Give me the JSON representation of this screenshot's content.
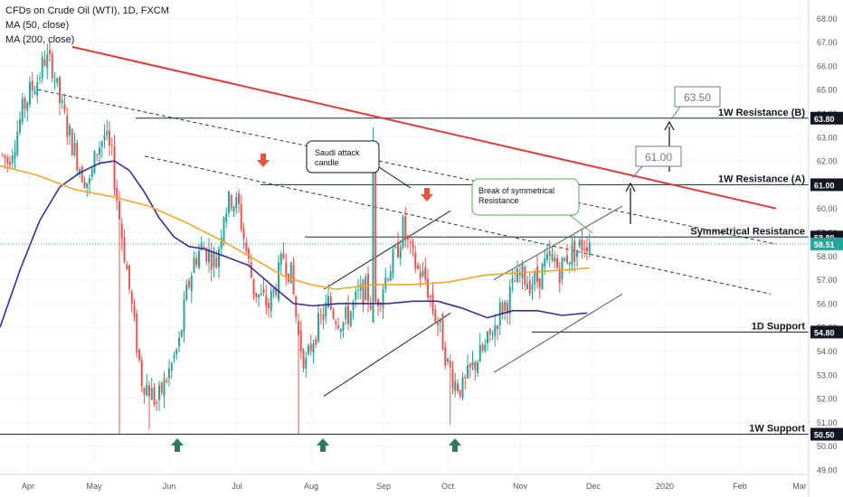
{
  "header": {
    "symbol": "CFDs on Crude Oil (WTI), 1D, FXCM",
    "ma50": "MA (50, close)",
    "ma200": "MA (200, close)"
  },
  "colors": {
    "up": "#26a69a",
    "down": "#ef5350",
    "ma50": "#3c2a98",
    "ma200": "#f5a623",
    "trend_red": "#e53935",
    "price_tag": "#26a69a",
    "arrow_up": "#2e7d52",
    "arrow_down": "#e8553e"
  },
  "chart_data": {
    "type": "candlestick",
    "x_labels": [
      "Apr",
      "May",
      "Jun",
      "Jul",
      "Aug",
      "Sep",
      "Oct",
      "Nov",
      "Dec",
      "2020",
      "Feb",
      "Mar"
    ],
    "y_ticks": [
      "49.00",
      "50.00",
      "51.00",
      "52.00",
      "53.00",
      "54.00",
      "55.00",
      "56.00",
      "57.00",
      "58.00",
      "59.00",
      "60.00",
      "61.00",
      "62.00",
      "63.00",
      "64.00",
      "65.00",
      "66.00",
      "67.00",
      "68.00"
    ],
    "ylim": [
      49,
      68.5
    ],
    "last_price": "58.51",
    "price_tags": [
      "63.80",
      "61.00",
      "58.80",
      "54.80",
      "50.50"
    ],
    "levels": [
      {
        "name": "1W Resistance (B)",
        "value": 63.8
      },
      {
        "name": "1W Resistance (A)",
        "value": 61.0
      },
      {
        "name": "Symmetrical Resistance",
        "value": 58.8
      },
      {
        "name": "1D Support",
        "value": 54.8
      },
      {
        "name": "1W Support",
        "value": 50.5
      }
    ],
    "annotations": {
      "saudi": "Saudi attack candle",
      "break": "Break of symmetrical Resistance",
      "target_a": "61.00",
      "target_b": "63.50"
    },
    "close_path": [
      [
        0,
        62.3
      ],
      [
        3,
        62.0
      ],
      [
        6,
        62.9
      ],
      [
        9,
        64.1
      ],
      [
        12,
        64.9
      ],
      [
        15,
        65.4
      ],
      [
        18,
        66.3
      ],
      [
        21,
        66.0
      ],
      [
        24,
        64.5
      ],
      [
        27,
        63.4
      ],
      [
        30,
        62.4
      ],
      [
        33,
        61.5
      ],
      [
        36,
        61.0
      ],
      [
        39,
        62.5
      ],
      [
        42,
        63.1
      ],
      [
        45,
        62.1
      ],
      [
        48,
        59.6
      ],
      [
        51,
        57.4
      ],
      [
        54,
        55.0
      ],
      [
        57,
        52.8
      ],
      [
        60,
        52.4
      ],
      [
        63,
        51.8
      ],
      [
        66,
        52.6
      ],
      [
        69,
        53.4
      ],
      [
        72,
        54.3
      ],
      [
        75,
        56.4
      ],
      [
        78,
        57.8
      ],
      [
        81,
        58.4
      ],
      [
        84,
        58.1
      ],
      [
        87,
        57.7
      ],
      [
        90,
        59.9
      ],
      [
        93,
        60.4
      ],
      [
        96,
        60.0
      ],
      [
        99,
        58.2
      ],
      [
        102,
        56.6
      ],
      [
        105,
        56.2
      ],
      [
        108,
        55.9
      ],
      [
        111,
        56.8
      ],
      [
        114,
        58.0
      ],
      [
        117,
        57.2
      ],
      [
        120,
        54.6
      ],
      [
        123,
        53.4
      ],
      [
        126,
        54.6
      ],
      [
        129,
        55.3
      ],
      [
        132,
        56.0
      ],
      [
        135,
        55.5
      ],
      [
        138,
        55.2
      ],
      [
        141,
        55.7
      ],
      [
        144,
        56.3
      ],
      [
        147,
        56.6
      ],
      [
        150,
        55.8
      ],
      [
        153,
        56.5
      ],
      [
        156,
        57.4
      ],
      [
        159,
        58.0
      ],
      [
        162,
        59.2
      ],
      [
        165,
        58.1
      ],
      [
        168,
        57.4
      ],
      [
        171,
        57.0
      ],
      [
        174,
        55.8
      ],
      [
        177,
        54.9
      ],
      [
        180,
        53.4
      ],
      [
        183,
        52.7
      ],
      [
        186,
        52.4
      ],
      [
        189,
        53.1
      ],
      [
        192,
        53.7
      ],
      [
        195,
        54.1
      ],
      [
        198,
        54.8
      ],
      [
        201,
        55.7
      ],
      [
        204,
        56.1
      ],
      [
        207,
        56.9
      ],
      [
        210,
        57.2
      ],
      [
        213,
        56.9
      ],
      [
        216,
        57.0
      ],
      [
        219,
        57.6
      ],
      [
        222,
        57.8
      ],
      [
        225,
        57.4
      ],
      [
        228,
        58.0
      ],
      [
        231,
        58.2
      ],
      [
        234,
        58.5
      ],
      [
        237,
        58.7
      ]
    ],
    "spikes": [
      {
        "i": 48,
        "lo": 50.5
      },
      {
        "i": 60,
        "lo": 50.7
      },
      {
        "i": 120,
        "lo": 50.5
      },
      {
        "i": 150,
        "hi": 63.4,
        "o": 55.2,
        "c": 62.1
      },
      {
        "i": 181,
        "lo": 50.9
      }
    ],
    "ma50_path": [
      [
        0,
        55.0
      ],
      [
        8,
        57.4
      ],
      [
        16,
        59.5
      ],
      [
        24,
        60.9
      ],
      [
        32,
        61.5
      ],
      [
        40,
        61.9
      ],
      [
        46,
        62.0
      ],
      [
        52,
        61.6
      ],
      [
        58,
        60.7
      ],
      [
        64,
        59.6
      ],
      [
        70,
        58.8
      ],
      [
        76,
        58.4
      ],
      [
        82,
        58.3
      ],
      [
        90,
        58.0
      ],
      [
        100,
        57.6
      ],
      [
        110,
        56.7
      ],
      [
        118,
        56.0
      ],
      [
        126,
        55.9
      ],
      [
        136,
        56.0
      ],
      [
        146,
        56.0
      ],
      [
        156,
        56.0
      ],
      [
        166,
        56.1
      ],
      [
        176,
        56.1
      ],
      [
        186,
        55.8
      ],
      [
        196,
        55.4
      ],
      [
        206,
        55.7
      ],
      [
        216,
        55.7
      ],
      [
        226,
        55.5
      ],
      [
        236,
        55.6
      ]
    ],
    "ma200_path": [
      [
        0,
        61.8
      ],
      [
        15,
        61.4
      ],
      [
        30,
        60.8
      ],
      [
        45,
        60.5
      ],
      [
        60,
        60.1
      ],
      [
        75,
        59.4
      ],
      [
        90,
        58.6
      ],
      [
        105,
        57.7
      ],
      [
        115,
        57.1
      ],
      [
        125,
        56.8
      ],
      [
        135,
        56.6
      ],
      [
        150,
        56.8
      ],
      [
        165,
        56.8
      ],
      [
        180,
        56.9
      ],
      [
        195,
        57.2
      ],
      [
        210,
        57.3
      ],
      [
        225,
        57.4
      ],
      [
        237,
        57.5
      ]
    ]
  }
}
